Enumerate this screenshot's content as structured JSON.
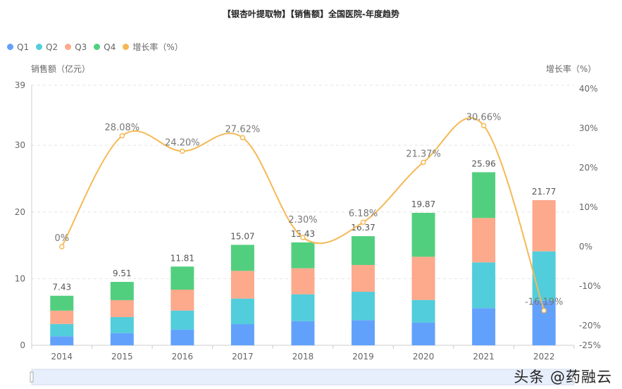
{
  "chart_data": {
    "type": "bar",
    "title": "【银杏叶提取物】【销售额】全国医院-年度趋势",
    "stacked": true,
    "categories": [
      "2014",
      "2015",
      "2016",
      "2017",
      "2018",
      "2019",
      "2020",
      "2021",
      "2022"
    ],
    "series": [
      {
        "name": "Q1",
        "color": "#62a1fb",
        "values": [
          1.35,
          1.83,
          2.36,
          3.17,
          3.63,
          3.77,
          3.42,
          5.57,
          6.7
        ]
      },
      {
        "name": "Q2",
        "color": "#52cddb",
        "values": [
          1.85,
          2.4,
          2.85,
          3.84,
          4.02,
          4.26,
          3.38,
          6.87,
          7.39
        ]
      },
      {
        "name": "Q3",
        "color": "#fca98c",
        "values": [
          2.0,
          2.54,
          3.14,
          4.16,
          3.91,
          4.02,
          6.48,
          6.66,
          7.68
        ]
      },
      {
        "name": "Q4",
        "color": "#52cf7e",
        "values": [
          2.23,
          2.74,
          3.46,
          3.9,
          3.87,
          4.32,
          6.59,
          6.86,
          0
        ]
      }
    ],
    "totals": [
      "7.43",
      "9.51",
      "11.81",
      "15.07",
      "15.43",
      "16.37",
      "19.87",
      "25.96",
      "21.77"
    ],
    "line": {
      "name": "增长率（%）",
      "color": "#f5b955",
      "values": [
        0,
        28.08,
        24.2,
        27.62,
        2.3,
        6.18,
        21.37,
        30.66,
        -16.19
      ],
      "labels": [
        "0%",
        "28.08%",
        "24.20%",
        "27.62%",
        "2.30%",
        "6.18%",
        "21.37%",
        "30.66%",
        "-16.19%"
      ]
    },
    "ylabel": "销售额（亿元）",
    "y2label": "增长率（%）",
    "ylim": [
      0,
      39
    ],
    "yticks": [
      "0",
      "10",
      "20",
      "30",
      "39"
    ],
    "y2lim": [
      -25,
      40
    ],
    "y2ticks": [
      "40%",
      "30%",
      "20%",
      "10%",
      "0%",
      "-10%",
      "-20%",
      "-25%"
    ],
    "y2tickvalues": [
      40,
      30,
      20,
      10,
      0,
      -10,
      -20,
      -25
    ],
    "grid": true,
    "legend_position": "top-left"
  },
  "watermark": "头条 @药融云"
}
